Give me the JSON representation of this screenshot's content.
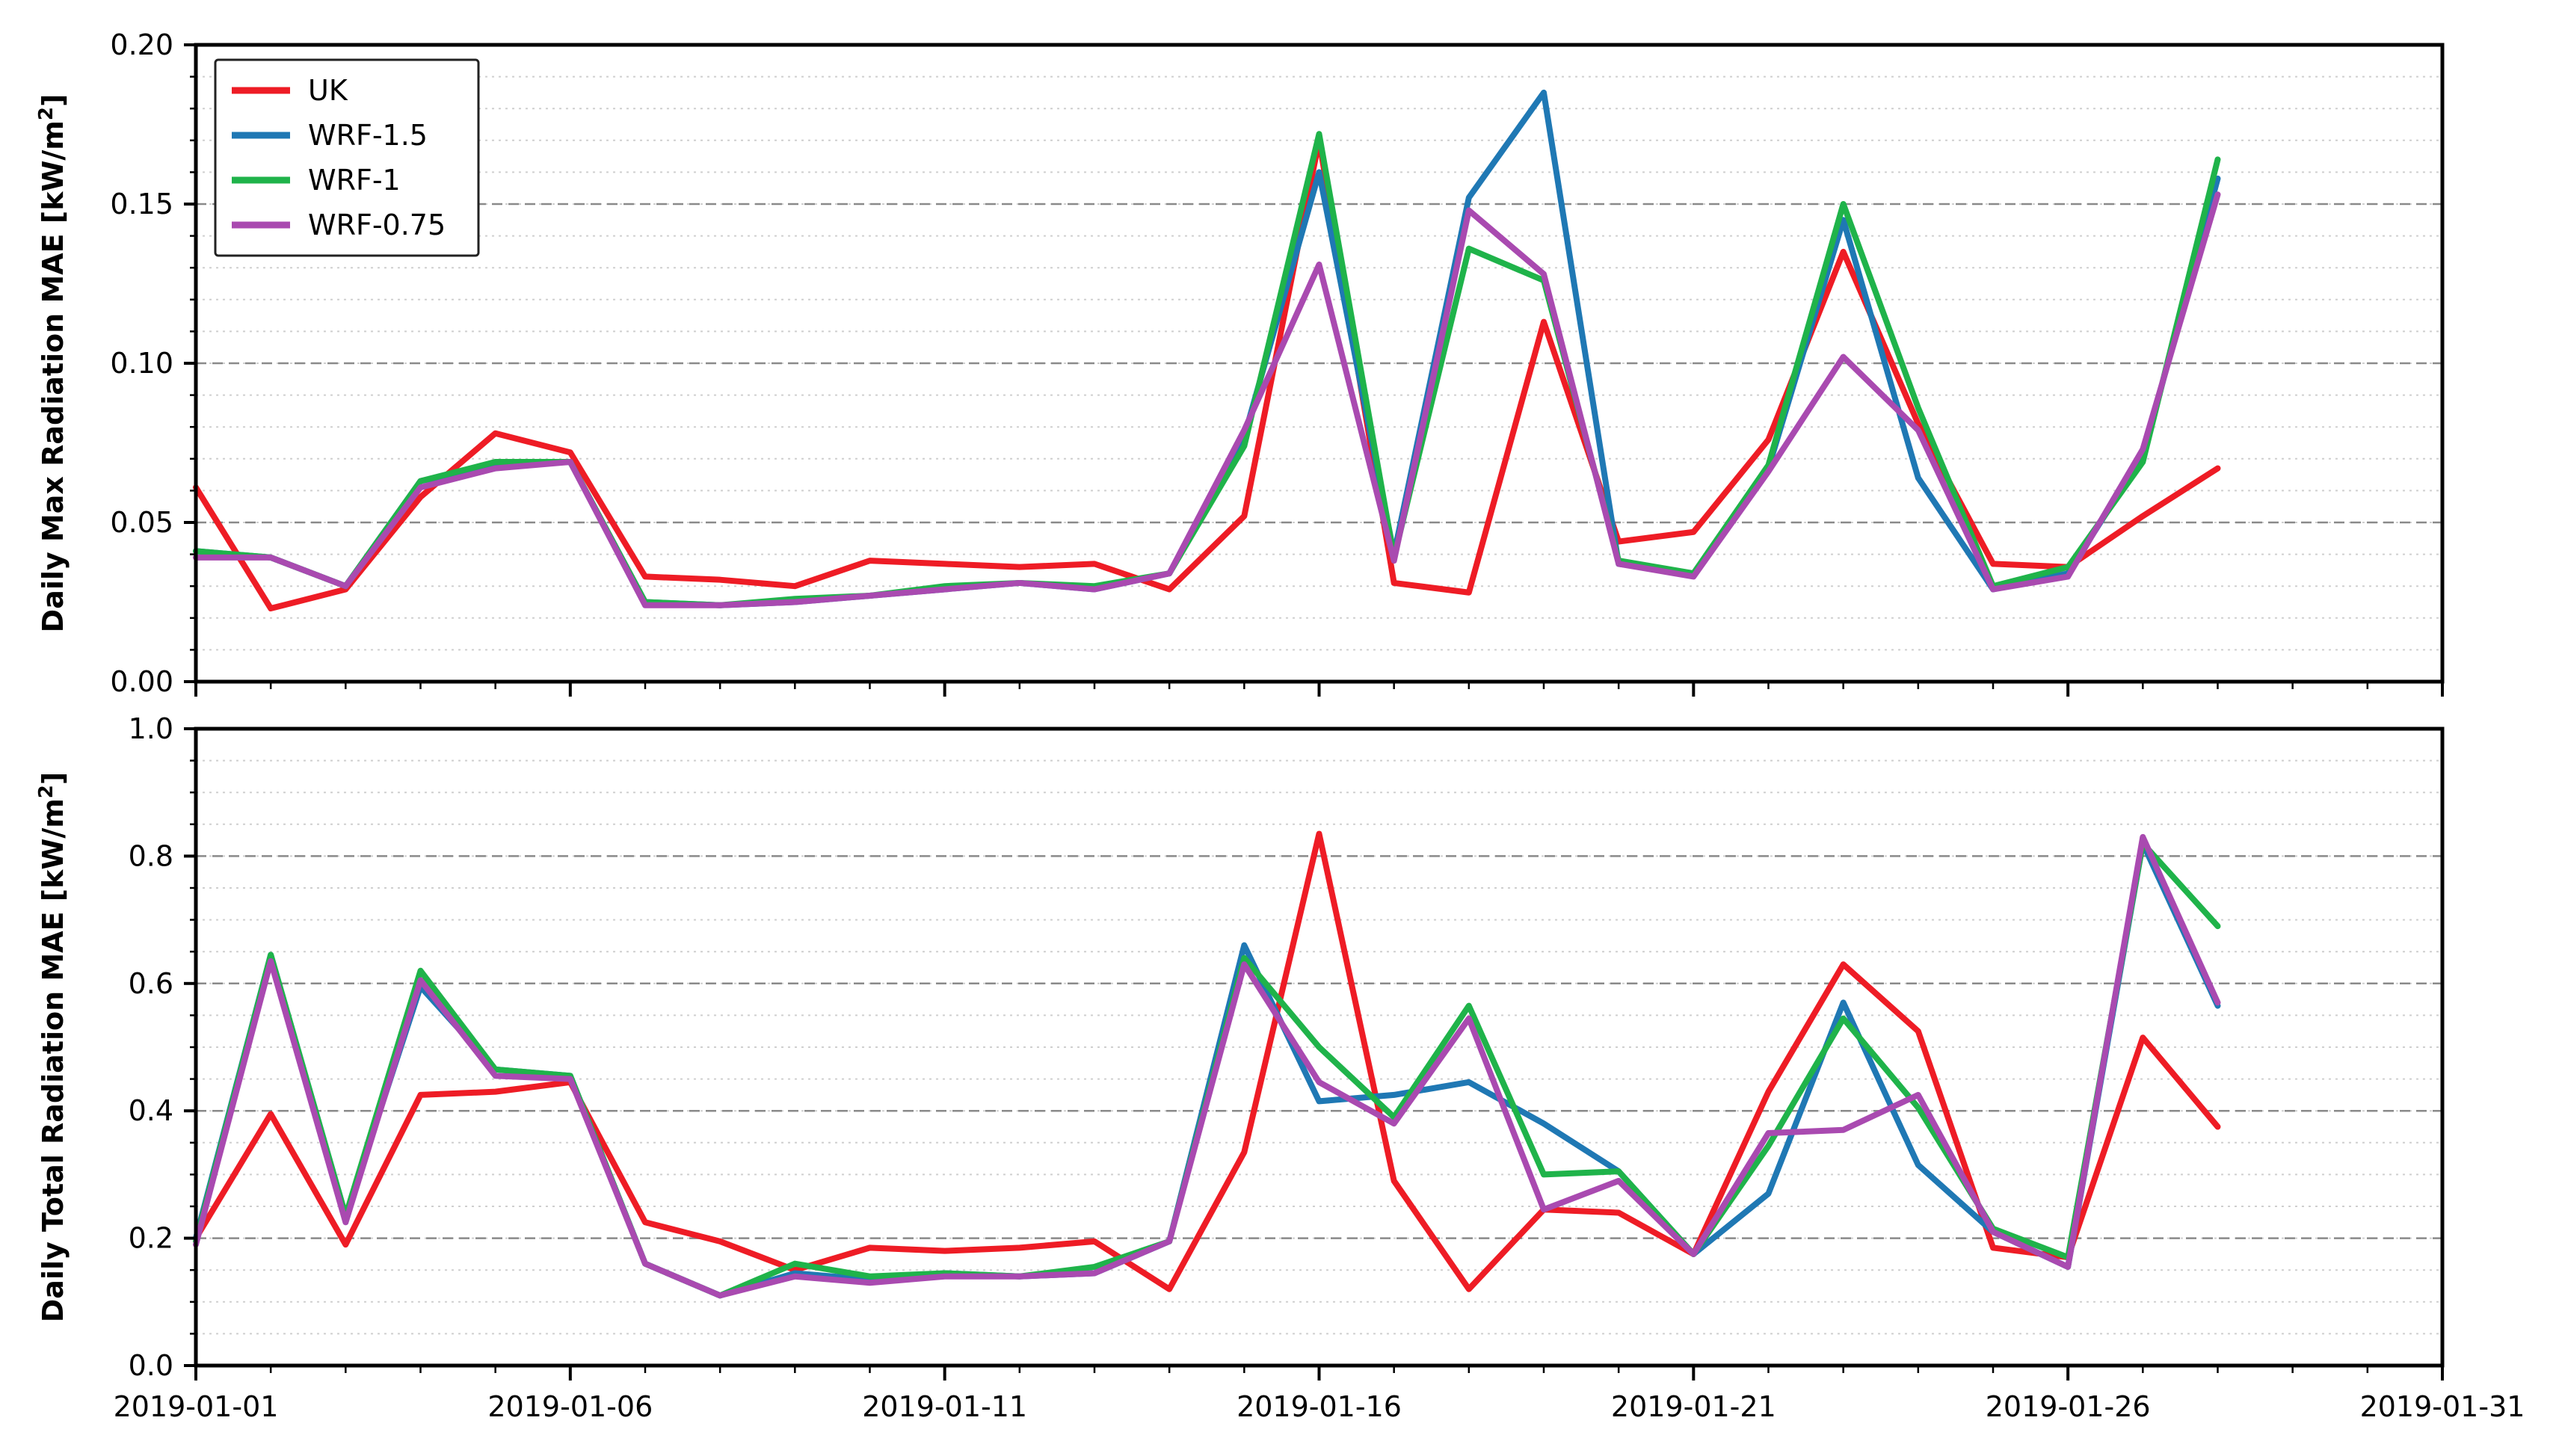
{
  "chart_data": [
    {
      "type": "line",
      "ylabel": "Daily Max Radiation MAE [kW/m",
      "ylabel_sup": "2",
      "ylabel_suffix": "]",
      "ylim": [
        0,
        0.2
      ],
      "yticks": [
        0,
        0.05,
        0.1,
        0.15,
        0.2
      ],
      "ytick_labels": [
        "0.00",
        "0.05",
        "0.10",
        "0.15",
        "0.20"
      ],
      "dashed_grid": [
        0.05,
        0.1,
        0.15
      ],
      "xlim": [
        0,
        30
      ],
      "xticks": [
        0,
        5,
        10,
        15,
        20,
        25,
        30
      ],
      "xtick_labels": [
        "2019-01-01",
        "2019-01-06",
        "2019-01-11",
        "2019-01-16",
        "2019-01-21",
        "2019-01-26",
        "2019-01-31"
      ],
      "show_xtick_labels": false,
      "legend": {
        "placement": "top-left",
        "entries": [
          "UK",
          "WRF-1.5",
          "WRF-1",
          "WRF-0.75"
        ]
      },
      "series": [
        {
          "name": "UK",
          "color": "#ee1c25",
          "values": [
            0.061,
            0.023,
            0.029,
            0.058,
            0.078,
            0.072,
            0.033,
            0.032,
            0.03,
            0.038,
            0.037,
            0.036,
            0.037,
            0.029,
            0.052,
            0.17,
            0.031,
            0.028,
            0.113,
            0.044,
            0.047,
            0.076,
            0.135,
            0.081,
            0.037,
            0.036,
            0.052,
            0.067
          ]
        },
        {
          "name": "WRF-1.5",
          "color": "#1f78b4",
          "values": [
            0.041,
            0.039,
            0.03,
            0.063,
            0.068,
            0.069,
            0.025,
            0.024,
            0.025,
            0.027,
            0.029,
            0.031,
            0.029,
            0.034,
            0.077,
            0.16,
            0.04,
            0.152,
            0.185,
            0.037,
            0.034,
            0.067,
            0.145,
            0.064,
            0.029,
            0.034,
            0.071,
            0.158
          ]
        },
        {
          "name": "WRF-1",
          "color": "#1fb34a",
          "values": [
            0.041,
            0.039,
            0.03,
            0.063,
            0.069,
            0.069,
            0.025,
            0.024,
            0.026,
            0.027,
            0.03,
            0.031,
            0.03,
            0.034,
            0.074,
            0.172,
            0.039,
            0.136,
            0.126,
            0.038,
            0.034,
            0.068,
            0.15,
            0.086,
            0.03,
            0.036,
            0.069,
            0.164
          ]
        },
        {
          "name": "WRF-0.75",
          "color": "#a94ab0",
          "values": [
            0.039,
            0.039,
            0.03,
            0.061,
            0.067,
            0.069,
            0.024,
            0.024,
            0.025,
            0.027,
            0.029,
            0.031,
            0.029,
            0.034,
            0.079,
            0.131,
            0.038,
            0.148,
            0.128,
            0.037,
            0.033,
            0.066,
            0.102,
            0.079,
            0.029,
            0.033,
            0.073,
            0.153
          ]
        }
      ]
    },
    {
      "type": "line",
      "ylabel": "Daily Total Radiation MAE [kW/m",
      "ylabel_sup": "2",
      "ylabel_suffix": "]",
      "ylim": [
        0,
        1.0
      ],
      "yticks": [
        0,
        0.2,
        0.4,
        0.6,
        0.8,
        1.0
      ],
      "ytick_labels": [
        "0.0",
        "0.2",
        "0.4",
        "0.6",
        "0.8",
        "1.0"
      ],
      "dashed_grid": [
        0.2,
        0.4,
        0.6,
        0.8
      ],
      "xlim": [
        0,
        30
      ],
      "xticks": [
        0,
        5,
        10,
        15,
        20,
        25,
        30
      ],
      "xtick_labels": [
        "2019-01-01",
        "2019-01-06",
        "2019-01-11",
        "2019-01-16",
        "2019-01-21",
        "2019-01-26",
        "2019-01-31"
      ],
      "show_xtick_labels": true,
      "series": [
        {
          "name": "UK",
          "color": "#ee1c25",
          "values": [
            0.2,
            0.395,
            0.19,
            0.425,
            0.43,
            0.445,
            0.225,
            0.195,
            0.15,
            0.185,
            0.18,
            0.185,
            0.195,
            0.12,
            0.335,
            0.835,
            0.29,
            0.12,
            0.245,
            0.24,
            0.175,
            0.43,
            0.63,
            0.525,
            0.185,
            0.17,
            0.515,
            0.375
          ]
        },
        {
          "name": "WRF-1.5",
          "color": "#1f78b4",
          "values": [
            0.2,
            0.645,
            0.235,
            0.595,
            0.465,
            0.455,
            0.16,
            0.11,
            0.145,
            0.135,
            0.145,
            0.14,
            0.145,
            0.195,
            0.66,
            0.415,
            0.425,
            0.445,
            0.38,
            0.305,
            0.175,
            0.27,
            0.57,
            0.315,
            0.21,
            0.155,
            0.82,
            0.565
          ]
        },
        {
          "name": "WRF-1",
          "color": "#1fb34a",
          "values": [
            0.195,
            0.645,
            0.235,
            0.62,
            0.465,
            0.455,
            0.16,
            0.11,
            0.16,
            0.14,
            0.145,
            0.14,
            0.155,
            0.195,
            0.64,
            0.5,
            0.39,
            0.565,
            0.3,
            0.305,
            0.175,
            0.345,
            0.545,
            0.405,
            0.215,
            0.17,
            0.82,
            0.69
          ]
        },
        {
          "name": "WRF-0.75",
          "color": "#a94ab0",
          "values": [
            0.19,
            0.635,
            0.225,
            0.605,
            0.455,
            0.45,
            0.16,
            0.11,
            0.14,
            0.13,
            0.14,
            0.14,
            0.145,
            0.195,
            0.63,
            0.445,
            0.38,
            0.545,
            0.245,
            0.29,
            0.175,
            0.365,
            0.37,
            0.425,
            0.21,
            0.155,
            0.83,
            0.57
          ]
        }
      ]
    }
  ]
}
